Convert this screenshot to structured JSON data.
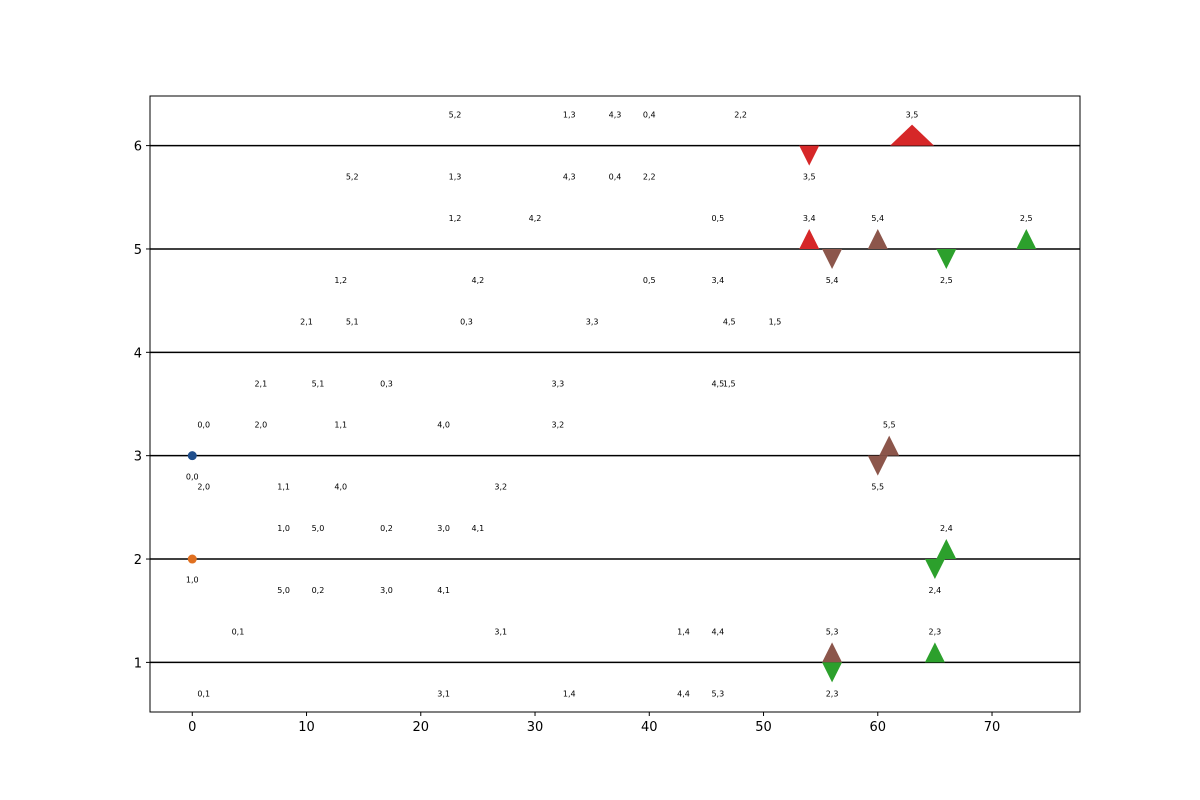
{
  "chart_data": {
    "type": "scatter",
    "title": "",
    "xlabel": "",
    "ylabel": "",
    "xlim": [
      -3.7,
      77.7
    ],
    "ylim": [
      0.52,
      6.48
    ],
    "xticks": [
      0,
      10,
      20,
      30,
      40,
      50,
      60,
      70
    ],
    "yticks": [
      1,
      2,
      3,
      4,
      5,
      6
    ],
    "hlines": [
      1,
      2,
      3,
      4,
      5,
      6
    ],
    "grid": false,
    "points": [
      {
        "x": 0,
        "y": 3,
        "color": "#1f4e8c",
        "marker": "circle",
        "size": 1
      },
      {
        "x": 0,
        "y": 2,
        "color": "#e07020",
        "marker": "circle",
        "size": 1
      }
    ],
    "triangles": [
      {
        "x": 54,
        "y": 6,
        "dir": "down",
        "color": "#d62728",
        "size": 1
      },
      {
        "x": 63,
        "y": 6,
        "dir": "up",
        "color": "#d62728",
        "size": 2.2
      },
      {
        "x": 54,
        "y": 5,
        "dir": "up",
        "color": "#d62728",
        "size": 1
      },
      {
        "x": 56,
        "y": 5,
        "dir": "down",
        "color": "#8c564b",
        "size": 1
      },
      {
        "x": 60,
        "y": 5,
        "dir": "up",
        "color": "#8c564b",
        "size": 1
      },
      {
        "x": 66,
        "y": 5,
        "dir": "down",
        "color": "#2ca02c",
        "size": 1
      },
      {
        "x": 73,
        "y": 5,
        "dir": "up",
        "color": "#2ca02c",
        "size": 1
      },
      {
        "x": 61,
        "y": 3,
        "dir": "up",
        "color": "#8c564b",
        "size": 1
      },
      {
        "x": 60,
        "y": 3,
        "dir": "down",
        "color": "#8c564b",
        "size": 1
      },
      {
        "x": 66,
        "y": 2,
        "dir": "up",
        "color": "#2ca02c",
        "size": 1
      },
      {
        "x": 65,
        "y": 2,
        "dir": "down",
        "color": "#2ca02c",
        "size": 1
      },
      {
        "x": 56,
        "y": 1,
        "dir": "up",
        "color": "#8c564b",
        "size": 1
      },
      {
        "x": 56,
        "y": 1,
        "dir": "down",
        "color": "#2ca02c",
        "size": 1
      },
      {
        "x": 65,
        "y": 1,
        "dir": "up",
        "color": "#2ca02c",
        "size": 1
      }
    ],
    "annotations": [
      {
        "x": 23,
        "y": 6.3,
        "text": "5,2"
      },
      {
        "x": 33,
        "y": 6.3,
        "text": "1,3"
      },
      {
        "x": 37,
        "y": 6.3,
        "text": "4,3"
      },
      {
        "x": 40,
        "y": 6.3,
        "text": "0,4"
      },
      {
        "x": 48,
        "y": 6.3,
        "text": "2,2"
      },
      {
        "x": 63,
        "y": 6.3,
        "text": "3,5"
      },
      {
        "x": 14,
        "y": 5.7,
        "text": "5,2"
      },
      {
        "x": 23,
        "y": 5.7,
        "text": "1,3"
      },
      {
        "x": 33,
        "y": 5.7,
        "text": "4,3"
      },
      {
        "x": 37,
        "y": 5.7,
        "text": "0,4"
      },
      {
        "x": 40,
        "y": 5.7,
        "text": "2,2"
      },
      {
        "x": 54,
        "y": 5.7,
        "text": "3,5"
      },
      {
        "x": 23,
        "y": 5.3,
        "text": "1,2"
      },
      {
        "x": 30,
        "y": 5.3,
        "text": "4,2"
      },
      {
        "x": 46,
        "y": 5.3,
        "text": "0,5"
      },
      {
        "x": 54,
        "y": 5.3,
        "text": "3,4"
      },
      {
        "x": 60,
        "y": 5.3,
        "text": "5,4"
      },
      {
        "x": 73,
        "y": 5.3,
        "text": "2,5"
      },
      {
        "x": 13,
        "y": 4.7,
        "text": "1,2"
      },
      {
        "x": 25,
        "y": 4.7,
        "text": "4,2"
      },
      {
        "x": 40,
        "y": 4.7,
        "text": "0,5"
      },
      {
        "x": 46,
        "y": 4.7,
        "text": "3,4"
      },
      {
        "x": 56,
        "y": 4.7,
        "text": "5,4"
      },
      {
        "x": 66,
        "y": 4.7,
        "text": "2,5"
      },
      {
        "x": 10,
        "y": 4.3,
        "text": "2,1"
      },
      {
        "x": 14,
        "y": 4.3,
        "text": "5,1"
      },
      {
        "x": 24,
        "y": 4.3,
        "text": "0,3"
      },
      {
        "x": 35,
        "y": 4.3,
        "text": "3,3"
      },
      {
        "x": 47,
        "y": 4.3,
        "text": "4,5"
      },
      {
        "x": 51,
        "y": 4.3,
        "text": "1,5"
      },
      {
        "x": 6,
        "y": 3.7,
        "text": "2,1"
      },
      {
        "x": 11,
        "y": 3.7,
        "text": "5,1"
      },
      {
        "x": 17,
        "y": 3.7,
        "text": "0,3"
      },
      {
        "x": 32,
        "y": 3.7,
        "text": "3,3"
      },
      {
        "x": 46,
        "y": 3.7,
        "text": "4,5"
      },
      {
        "x": 47,
        "y": 3.7,
        "text": "1,5"
      },
      {
        "x": 1,
        "y": 3.3,
        "text": "0,0"
      },
      {
        "x": 6,
        "y": 3.3,
        "text": "2,0"
      },
      {
        "x": 13,
        "y": 3.3,
        "text": "1,1"
      },
      {
        "x": 22,
        "y": 3.3,
        "text": "4,0"
      },
      {
        "x": 32,
        "y": 3.3,
        "text": "3,2"
      },
      {
        "x": 61,
        "y": 3.3,
        "text": "5,5"
      },
      {
        "x": 0,
        "y": 2.8,
        "text": "0,0"
      },
      {
        "x": 1,
        "y": 2.7,
        "text": "2,0"
      },
      {
        "x": 8,
        "y": 2.7,
        "text": "1,1"
      },
      {
        "x": 13,
        "y": 2.7,
        "text": "4,0"
      },
      {
        "x": 27,
        "y": 2.7,
        "text": "3,2"
      },
      {
        "x": 60,
        "y": 2.7,
        "text": "5,5"
      },
      {
        "x": 8,
        "y": 2.3,
        "text": "1,0"
      },
      {
        "x": 11,
        "y": 2.3,
        "text": "5,0"
      },
      {
        "x": 17,
        "y": 2.3,
        "text": "0,2"
      },
      {
        "x": 22,
        "y": 2.3,
        "text": "3,0"
      },
      {
        "x": 25,
        "y": 2.3,
        "text": "4,1"
      },
      {
        "x": 66,
        "y": 2.3,
        "text": "2,4"
      },
      {
        "x": 0,
        "y": 1.8,
        "text": "1,0"
      },
      {
        "x": 8,
        "y": 1.7,
        "text": "5,0"
      },
      {
        "x": 11,
        "y": 1.7,
        "text": "0,2"
      },
      {
        "x": 17,
        "y": 1.7,
        "text": "3,0"
      },
      {
        "x": 22,
        "y": 1.7,
        "text": "4,1"
      },
      {
        "x": 65,
        "y": 1.7,
        "text": "2,4"
      },
      {
        "x": 4,
        "y": 1.3,
        "text": "0,1"
      },
      {
        "x": 27,
        "y": 1.3,
        "text": "3,1"
      },
      {
        "x": 43,
        "y": 1.3,
        "text": "1,4"
      },
      {
        "x": 46,
        "y": 1.3,
        "text": "4,4"
      },
      {
        "x": 56,
        "y": 1.3,
        "text": "5,3"
      },
      {
        "x": 65,
        "y": 1.3,
        "text": "2,3"
      },
      {
        "x": 1,
        "y": 0.7,
        "text": "0,1"
      },
      {
        "x": 22,
        "y": 0.7,
        "text": "3,1"
      },
      {
        "x": 33,
        "y": 0.7,
        "text": "1,4"
      },
      {
        "x": 43,
        "y": 0.7,
        "text": "4,4"
      },
      {
        "x": 46,
        "y": 0.7,
        "text": "5,3"
      },
      {
        "x": 56,
        "y": 0.7,
        "text": "2,3"
      }
    ]
  }
}
